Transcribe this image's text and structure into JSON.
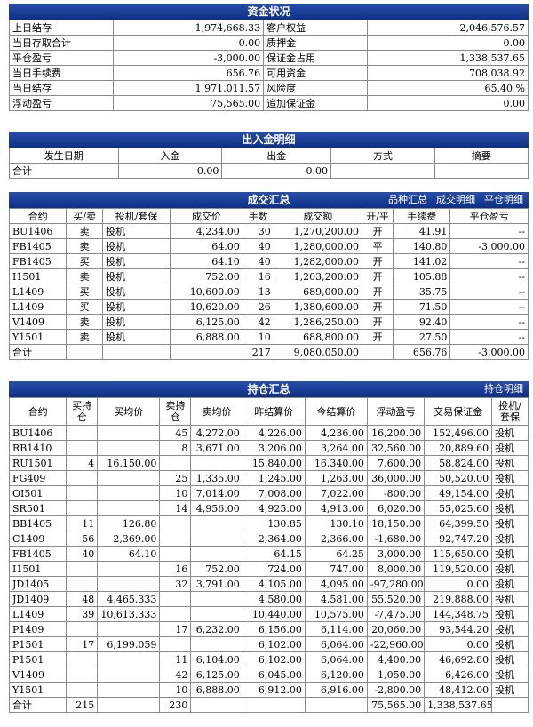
{
  "funds": {
    "title": "资金状况",
    "rows": [
      [
        "上日结存",
        "1,974,668.33",
        "客户权益",
        "2,046,576.57"
      ],
      [
        "当日存取合计",
        "0.00",
        "质押金",
        "0.00"
      ],
      [
        "平仓盈亏",
        "-3,000.00",
        "保证金占用",
        "1,338,537.65"
      ],
      [
        "当日手续费",
        "656.76",
        "可用资金",
        "708,038.92"
      ],
      [
        "当日结存",
        "1,971,011.57",
        "风险度",
        "65.40 %"
      ],
      [
        "浮动盈亏",
        "75,565.00",
        "追加保证金",
        "0.00"
      ]
    ]
  },
  "inout": {
    "title": "出入金明细",
    "headers": [
      "发生日期",
      "入金",
      "出金",
      "方式",
      "摘要"
    ],
    "total": [
      "合计",
      "0.00",
      "0.00",
      "",
      ""
    ]
  },
  "trades": {
    "title": "成交汇总",
    "links": [
      "品种汇总",
      "成交明细",
      "平仓明细"
    ],
    "headers": [
      "合约",
      "买/卖",
      "投机/套保",
      "成交价",
      "手数",
      "成交额",
      "开/平",
      "手续费",
      "平仓盈亏"
    ],
    "rows": [
      [
        "BU1406",
        "卖",
        "投机",
        "4,234.00",
        "30",
        "1,270,200.00",
        "开",
        "41.91",
        "--"
      ],
      [
        "FB1405",
        "卖",
        "投机",
        "64.00",
        "40",
        "1,280,000.00",
        "平",
        "140.80",
        "-3,000.00"
      ],
      [
        "FB1405",
        "买",
        "投机",
        "64.10",
        "40",
        "1,282,000.00",
        "开",
        "141.02",
        "--"
      ],
      [
        "I1501",
        "卖",
        "投机",
        "752.00",
        "16",
        "1,203,200.00",
        "开",
        "105.88",
        "--"
      ],
      [
        "L1409",
        "买",
        "投机",
        "10,600.00",
        "13",
        "689,000.00",
        "开",
        "35.75",
        "--"
      ],
      [
        "L1409",
        "买",
        "投机",
        "10,620.00",
        "26",
        "1,380,600.00",
        "开",
        "71.50",
        "--"
      ],
      [
        "V1409",
        "卖",
        "投机",
        "6,125.00",
        "42",
        "1,286,250.00",
        "开",
        "92.40",
        "--"
      ],
      [
        "Y1501",
        "卖",
        "投机",
        "6,888.00",
        "10",
        "688,800.00",
        "开",
        "27.50",
        "--"
      ]
    ],
    "total": [
      "合计",
      "",
      "",
      "",
      "217",
      "9,080,050.00",
      "",
      "656.76",
      "-3,000.00"
    ]
  },
  "positions": {
    "title": "持仓汇总",
    "links": [
      "持仓明细"
    ],
    "headers": [
      "合约",
      "买持仓",
      "买均价",
      "卖持仓",
      "卖均价",
      "昨结算价",
      "今结算价",
      "浮动盈亏",
      "交易保证金",
      "投机/套保"
    ],
    "rows": [
      [
        "BU1406",
        "",
        "",
        "45",
        "4,272.00",
        "4,226.00",
        "4,236.00",
        "16,200.00",
        "152,496.00",
        "投机"
      ],
      [
        "RB1410",
        "",
        "",
        "8",
        "3,671.00",
        "3,206.00",
        "3,264.00",
        "32,560.00",
        "20,889.60",
        "投机"
      ],
      [
        "RU1501",
        "4",
        "16,150.00",
        "",
        "",
        "15,840.00",
        "16,340.00",
        "7,600.00",
        "58,824.00",
        "投机"
      ],
      [
        "FG409",
        "",
        "",
        "25",
        "1,335.00",
        "1,245.00",
        "1,263.00",
        "36,000.00",
        "50,520.00",
        "投机"
      ],
      [
        "OI501",
        "",
        "",
        "10",
        "7,014.00",
        "7,008.00",
        "7,022.00",
        "-800.00",
        "49,154.00",
        "投机"
      ],
      [
        "SR501",
        "",
        "",
        "14",
        "4,956.00",
        "4,925.00",
        "4,913.00",
        "6,020.00",
        "55,025.60",
        "投机"
      ],
      [
        "BB1405",
        "11",
        "126.80",
        "",
        "",
        "130.85",
        "130.10",
        "18,150.00",
        "64,399.50",
        "投机"
      ],
      [
        "C1409",
        "56",
        "2,369.00",
        "",
        "",
        "2,364.00",
        "2,366.00",
        "-1,680.00",
        "92,747.20",
        "投机"
      ],
      [
        "FB1405",
        "40",
        "64.10",
        "",
        "",
        "64.15",
        "64.25",
        "3,000.00",
        "115,650.00",
        "投机"
      ],
      [
        "I1501",
        "",
        "",
        "16",
        "752.00",
        "724.00",
        "747.00",
        "8,000.00",
        "119,520.00",
        "投机"
      ],
      [
        "JD1405",
        "",
        "",
        "32",
        "3,791.00",
        "4,105.00",
        "4,095.00",
        "-97,280.00",
        "0.00",
        "投机"
      ],
      [
        "JD1409",
        "48",
        "4,465.333",
        "",
        "",
        "4,580.00",
        "4,581.00",
        "55,520.00",
        "219,888.00",
        "投机"
      ],
      [
        "L1409",
        "39",
        "10,613.333",
        "",
        "",
        "10,440.00",
        "10,575.00",
        "-7,475.00",
        "144,348.75",
        "投机"
      ],
      [
        "P1409",
        "",
        "",
        "17",
        "6,232.00",
        "6,156.00",
        "6,114.00",
        "20,060.00",
        "93,544.20",
        "投机"
      ],
      [
        "P1501",
        "17",
        "6,199.059",
        "",
        "",
        "6,102.00",
        "6,064.00",
        "-22,960.00",
        "0.00",
        "投机"
      ],
      [
        "P1501",
        "",
        "",
        "11",
        "6,104.00",
        "6,102.00",
        "6,064.00",
        "4,400.00",
        "46,692.80",
        "投机"
      ],
      [
        "V1409",
        "",
        "",
        "42",
        "6,125.00",
        "6,045.00",
        "6,120.00",
        "1,050.00",
        "6,426.00",
        "投机"
      ],
      [
        "Y1501",
        "",
        "",
        "10",
        "6,888.00",
        "6,912.00",
        "6,916.00",
        "-2,800.00",
        "48,412.00",
        "投机"
      ]
    ],
    "total": [
      "合计",
      "215",
      "",
      "230",
      "",
      "",
      "",
      "75,565.00",
      "1,338,537.65",
      ""
    ]
  }
}
